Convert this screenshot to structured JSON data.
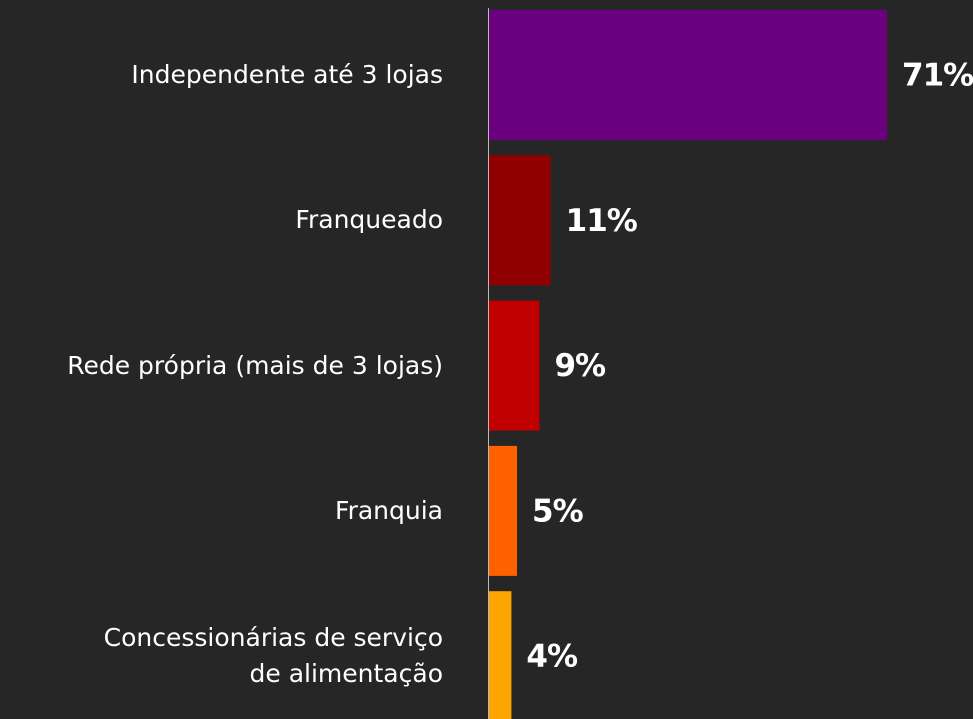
{
  "chart_data": {
    "type": "barh",
    "categories": [
      "Independente até 3 lojas",
      "Franqueado",
      "Rede própria (mais de 3 lojas)",
      "Franquia",
      "Concessionárias de serviço\nde alimentação"
    ],
    "values": [
      71,
      11,
      9,
      5,
      4
    ],
    "value_labels": [
      "71%",
      "11%",
      "9%",
      "5%",
      "4%"
    ],
    "colors": [
      "#6a0080",
      "#900000",
      "#c00000",
      "#ff6000",
      "#ffa500"
    ]
  }
}
